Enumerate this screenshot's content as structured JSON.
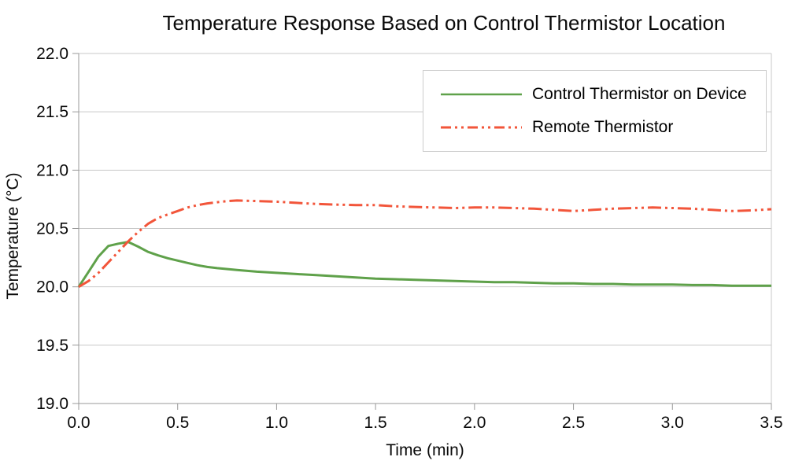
{
  "chart_data": {
    "type": "line",
    "title": "Temperature Response Based on Control Thermistor Location",
    "xlabel": "Time (min)",
    "ylabel": "Temperature (°C)",
    "xlim": [
      0.0,
      3.5
    ],
    "ylim": [
      19.0,
      22.0
    ],
    "x_ticks": [
      "0.0",
      "0.5",
      "1.0",
      "1.5",
      "2.0",
      "2.5",
      "3.0",
      "3.5"
    ],
    "y_ticks": [
      "19.0",
      "19.5",
      "20.0",
      "20.5",
      "21.0",
      "21.5",
      "22.0"
    ],
    "grid": "horizontal-only",
    "legend_position": "top-right-inside",
    "colors": {
      "gridline": "#c9c9c9",
      "axis": "#999999",
      "text": "#0a0a0a",
      "background": "#ffffff",
      "legend_border": "#cccccc"
    },
    "series": [
      {
        "name": "Control Thermistor on Device",
        "color": "#5fa14a",
        "style": "solid",
        "x": [
          0,
          0.05,
          0.1,
          0.15,
          0.2,
          0.25,
          0.3,
          0.35,
          0.4,
          0.45,
          0.5,
          0.55,
          0.6,
          0.65,
          0.7,
          0.8,
          0.9,
          1.0,
          1.1,
          1.2,
          1.3,
          1.4,
          1.5,
          1.6,
          1.7,
          1.8,
          1.9,
          2.0,
          2.1,
          2.2,
          2.3,
          2.4,
          2.5,
          2.6,
          2.7,
          2.8,
          2.9,
          3.0,
          3.1,
          3.2,
          3.3,
          3.4,
          3.5
        ],
        "y": [
          20.0,
          20.13,
          20.26,
          20.35,
          20.37,
          20.385,
          20.345,
          20.3,
          20.27,
          20.245,
          20.225,
          20.205,
          20.185,
          20.17,
          20.16,
          20.145,
          20.13,
          20.12,
          20.11,
          20.1,
          20.09,
          20.08,
          20.07,
          20.065,
          20.06,
          20.055,
          20.05,
          20.045,
          20.04,
          20.04,
          20.035,
          20.03,
          20.03,
          20.025,
          20.025,
          20.02,
          20.02,
          20.02,
          20.015,
          20.015,
          20.01,
          20.01,
          20.01
        ]
      },
      {
        "name": "Remote Thermistor",
        "color": "#f2553a",
        "style": "dash-dot-dot",
        "x": [
          0,
          0.05,
          0.1,
          0.15,
          0.2,
          0.25,
          0.3,
          0.35,
          0.4,
          0.45,
          0.5,
          0.55,
          0.6,
          0.65,
          0.7,
          0.75,
          0.8,
          0.9,
          1.0,
          1.1,
          1.2,
          1.3,
          1.4,
          1.5,
          1.6,
          1.7,
          1.8,
          1.9,
          2.0,
          2.1,
          2.2,
          2.3,
          2.4,
          2.5,
          2.6,
          2.7,
          2.8,
          2.9,
          3.0,
          3.1,
          3.2,
          3.3,
          3.4,
          3.5
        ],
        "y": [
          20.0,
          20.05,
          20.12,
          20.21,
          20.3,
          20.39,
          20.47,
          20.54,
          20.59,
          20.62,
          20.65,
          20.68,
          20.7,
          20.715,
          20.725,
          20.735,
          20.74,
          20.735,
          20.73,
          20.72,
          20.71,
          20.705,
          20.7,
          20.7,
          20.69,
          20.685,
          20.68,
          20.675,
          20.68,
          20.68,
          20.675,
          20.67,
          20.66,
          20.65,
          20.66,
          20.67,
          20.675,
          20.68,
          20.675,
          20.67,
          20.66,
          20.65,
          20.655,
          20.665
        ]
      }
    ]
  }
}
